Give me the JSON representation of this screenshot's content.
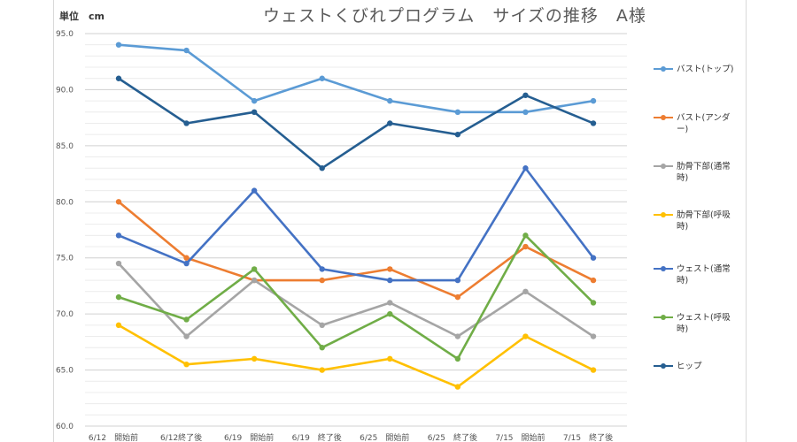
{
  "chart_data": {
    "type": "line",
    "title": "ウェストくびれプログラム　サイズの推移　A様",
    "unit_label": "単位　cm",
    "categories": [
      "6/12　開始前",
      "6/12終了後",
      "6/19　開始前",
      "6/19　終了後",
      "6/25　開始前",
      "6/25　終了後",
      "7/15　開始前",
      "7/15　終了後"
    ],
    "ylim": [
      60.0,
      95.0
    ],
    "yticks": [
      "60.0",
      "65.0",
      "70.0",
      "75.0",
      "80.0",
      "85.0",
      "90.0",
      "95.0"
    ],
    "grid": true,
    "legend_position": "right",
    "series": [
      {
        "name": "バスト(トップ)",
        "color": "#5b9bd5",
        "values": [
          94,
          93.5,
          89,
          91,
          89,
          88,
          88,
          89
        ]
      },
      {
        "name": "バスト(アンダー)",
        "color": "#ed7d31",
        "values": [
          80,
          75,
          73,
          73,
          74,
          71.5,
          76,
          73
        ]
      },
      {
        "name": "肋骨下部(通常時)",
        "color": "#a5a5a5",
        "values": [
          74.5,
          68,
          73,
          69,
          71,
          68,
          72,
          68
        ]
      },
      {
        "name": "肋骨下部(呼吸時)",
        "color": "#ffc000",
        "values": [
          69,
          65.5,
          66,
          65,
          66,
          63.5,
          68,
          65
        ]
      },
      {
        "name": "ウェスト(通常時)",
        "color": "#4472c4",
        "values": [
          77,
          74.5,
          81,
          74,
          73,
          73,
          83,
          75
        ]
      },
      {
        "name": "ウェスト(呼吸時)",
        "color": "#70ad47",
        "values": [
          71.5,
          69.5,
          74,
          67,
          70,
          66,
          77,
          71
        ]
      },
      {
        "name": "ヒップ",
        "color": "#255e91",
        "values": [
          91,
          87,
          88,
          83,
          87,
          86,
          89.5,
          87
        ]
      }
    ]
  }
}
